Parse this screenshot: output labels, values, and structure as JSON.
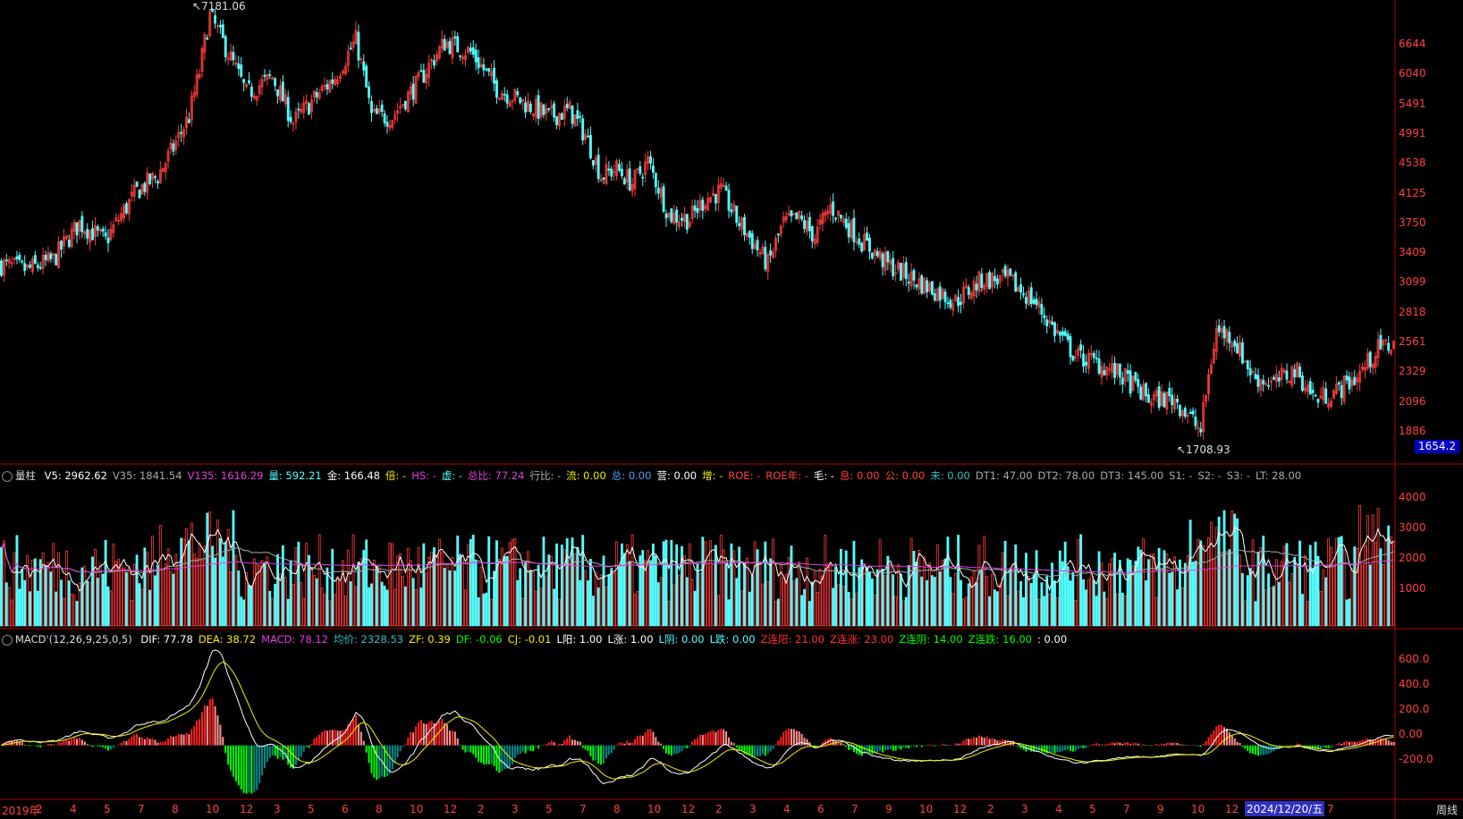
{
  "colors": {
    "up": "#ff3b3b",
    "down": "#54ffff",
    "axis": "#b00000",
    "ma_white": "#ffffff",
    "ma_magenta": "#e040e0",
    "ma_gray": "#aaaaaa",
    "macd_yellow": "#f0f000",
    "macd_white": "#ffffff",
    "macd_green": "#00ff00",
    "macd_teal": "#008888",
    "macd_red": "#ff2020",
    "macd_pink": "#ff9090"
  },
  "price_axis": {
    "ticks": [
      "6644",
      "6040",
      "5491",
      "4991",
      "4538",
      "4125",
      "3750",
      "3409",
      "3099",
      "2818",
      "2561",
      "2329",
      "2096",
      "1886"
    ],
    "current": "1654.2"
  },
  "annotations": {
    "high": "7181.06",
    "low": "1708.93"
  },
  "volume_header": {
    "name": "量柱",
    "items": [
      {
        "label": "V5:",
        "value": "2962.62",
        "color": "#ffffff"
      },
      {
        "label": "V35:",
        "value": "1841.54",
        "color": "#aaaaaa"
      },
      {
        "label": "V135:",
        "value": "1616.29",
        "color": "#e040e0"
      },
      {
        "label": "量:",
        "value": "592.21",
        "color": "#54ffff"
      },
      {
        "label": "金:",
        "value": "166.48",
        "color": "#ffffff"
      },
      {
        "label": "倍:",
        "value": "-",
        "color": "#f0f000"
      },
      {
        "label": "HS:",
        "value": "-",
        "color": "#e040e0"
      },
      {
        "label": "虚:",
        "value": "-",
        "color": "#54ffff"
      },
      {
        "label": "总比:",
        "value": "77.24",
        "color": "#e040e0"
      },
      {
        "label": "行比:",
        "value": "-",
        "color": "#aaaaaa"
      },
      {
        "label": "流:",
        "value": "0.00",
        "color": "#f0f000"
      },
      {
        "label": "总:",
        "value": "0.00",
        "color": "#54a0ff"
      },
      {
        "label": "营:",
        "value": "0.00",
        "color": "#ffffff"
      },
      {
        "label": "增:",
        "value": "-",
        "color": "#f0f000"
      },
      {
        "label": "ROE:",
        "value": "-",
        "color": "#ff4040"
      },
      {
        "label": "ROE年:",
        "value": "-",
        "color": "#ff4040"
      },
      {
        "label": "毛:",
        "value": "-",
        "color": "#ffffff"
      },
      {
        "label": "息:",
        "value": "0.00",
        "color": "#ff4040"
      },
      {
        "label": "公:",
        "value": "0.00",
        "color": "#ff4040"
      },
      {
        "label": "未:",
        "value": "0.00",
        "color": "#30c0c0"
      },
      {
        "label": "DT1:",
        "value": "47.00",
        "color": "#aaaaaa"
      },
      {
        "label": "DT2:",
        "value": "78.00",
        "color": "#aaaaaa"
      },
      {
        "label": "DT3:",
        "value": "145.00",
        "color": "#aaaaaa"
      },
      {
        "label": "S1:",
        "value": "-",
        "color": "#aaaaaa"
      },
      {
        "label": "S2:",
        "value": "-",
        "color": "#aaaaaa"
      },
      {
        "label": "S3:",
        "value": "-",
        "color": "#aaaaaa"
      },
      {
        "label": "LT:",
        "value": "28.00",
        "color": "#aaaaaa"
      }
    ]
  },
  "volume_axis": {
    "ticks": [
      "4000",
      "3000",
      "2000",
      "1000"
    ]
  },
  "macd_header": {
    "name": "MACD'(12,26,9,25,0,5)",
    "items": [
      {
        "label": "DIF:",
        "value": "77.78",
        "color": "#ffffff"
      },
      {
        "label": "DEA:",
        "value": "38.72",
        "color": "#f0f000"
      },
      {
        "label": "MACD:",
        "value": "78.12",
        "color": "#e040e0"
      },
      {
        "label": "均价:",
        "value": "2328.53",
        "color": "#30c0c0"
      },
      {
        "label": "ZF:",
        "value": "0.39",
        "color": "#f0f000"
      },
      {
        "label": "DF:",
        "value": "-0.06",
        "color": "#00ff00"
      },
      {
        "label": "CJ:",
        "value": "-0.01",
        "color": "#f0f000"
      },
      {
        "label": "L阳:",
        "value": "1.00",
        "color": "#ffffff"
      },
      {
        "label": "L涨:",
        "value": "1.00",
        "color": "#ffffff"
      },
      {
        "label": "L阴:",
        "value": "0.00",
        "color": "#54ffff"
      },
      {
        "label": "L跌:",
        "value": "0.00",
        "color": "#54ffff"
      },
      {
        "label": "Z连阳:",
        "value": "21.00",
        "color": "#ff3030"
      },
      {
        "label": "Z连涨:",
        "value": "23.00",
        "color": "#ff3030"
      },
      {
        "label": "Z连阴:",
        "value": "14.00",
        "color": "#00ff00"
      },
      {
        "label": "Z连跌:",
        "value": "16.00",
        "color": "#00ff00"
      },
      {
        "label": ":",
        "value": "0.00",
        "color": "#ffffff"
      }
    ]
  },
  "macd_axis": {
    "ticks": [
      "600.0",
      "400.0",
      "200.0",
      "0.00",
      "-200.0"
    ]
  },
  "x_axis": {
    "labels": [
      "2019年",
      "2",
      "4",
      "5",
      "7",
      "8",
      "10",
      "12",
      "3",
      "5",
      "6",
      "8",
      "10",
      "12",
      "2",
      "3",
      "5",
      "7",
      "8",
      "10",
      "12",
      "2",
      "3",
      "4",
      "6",
      "7",
      "9",
      "10",
      "12",
      "2",
      "3",
      "4",
      "5",
      "7",
      "9",
      "10",
      "12",
      "4",
      "5",
      "7"
    ],
    "selected_date": "2024/12/20/五",
    "period": "周线"
  },
  "chart_data": {
    "type": "candlestick",
    "title": "",
    "anchors_weekly_close": [
      [
        0,
        3050
      ],
      [
        10,
        3000
      ],
      [
        20,
        3100
      ],
      [
        30,
        3500
      ],
      [
        40,
        3300
      ],
      [
        52,
        3900
      ],
      [
        60,
        4100
      ],
      [
        66,
        4500
      ],
      [
        72,
        5000
      ],
      [
        76,
        5800
      ],
      [
        80,
        7000
      ],
      [
        86,
        6300
      ],
      [
        94,
        5400
      ],
      [
        104,
        5700
      ],
      [
        112,
        4900
      ],
      [
        120,
        5300
      ],
      [
        128,
        5700
      ],
      [
        136,
        6450
      ],
      [
        142,
        5000
      ],
      [
        150,
        5000
      ],
      [
        160,
        5600
      ],
      [
        170,
        6400
      ],
      [
        180,
        6200
      ],
      [
        190,
        5500
      ],
      [
        200,
        5250
      ],
      [
        210,
        5000
      ],
      [
        218,
        5100
      ],
      [
        224,
        4700
      ],
      [
        230,
        4100
      ],
      [
        236,
        4200
      ],
      [
        242,
        4000
      ],
      [
        248,
        4300
      ],
      [
        256,
        3600
      ],
      [
        264,
        3550
      ],
      [
        270,
        3800
      ],
      [
        276,
        3900
      ],
      [
        282,
        3550
      ],
      [
        288,
        3300
      ],
      [
        294,
        3050
      ],
      [
        300,
        3500
      ],
      [
        306,
        3550
      ],
      [
        312,
        3350
      ],
      [
        318,
        3700
      ],
      [
        324,
        3500
      ],
      [
        330,
        3300
      ],
      [
        340,
        3050
      ],
      [
        350,
        2900
      ],
      [
        358,
        2800
      ],
      [
        366,
        2700
      ],
      [
        376,
        2900
      ],
      [
        386,
        2900
      ],
      [
        396,
        2700
      ],
      [
        404,
        2450
      ],
      [
        412,
        2250
      ],
      [
        420,
        2200
      ],
      [
        430,
        2100
      ],
      [
        440,
        1950
      ],
      [
        450,
        1950
      ],
      [
        460,
        1750
      ],
      [
        466,
        2450
      ],
      [
        472,
        2400
      ],
      [
        480,
        2100
      ],
      [
        488,
        2050
      ],
      [
        496,
        2150
      ],
      [
        504,
        1950
      ],
      [
        512,
        2000
      ],
      [
        520,
        2100
      ],
      [
        528,
        2300
      ],
      [
        534,
        2350
      ]
    ],
    "price_range": [
      1650,
      7200
    ],
    "volume_range": [
      0,
      4700
    ],
    "macd_range": [
      -380,
      780
    ],
    "candle_count": 535
  }
}
